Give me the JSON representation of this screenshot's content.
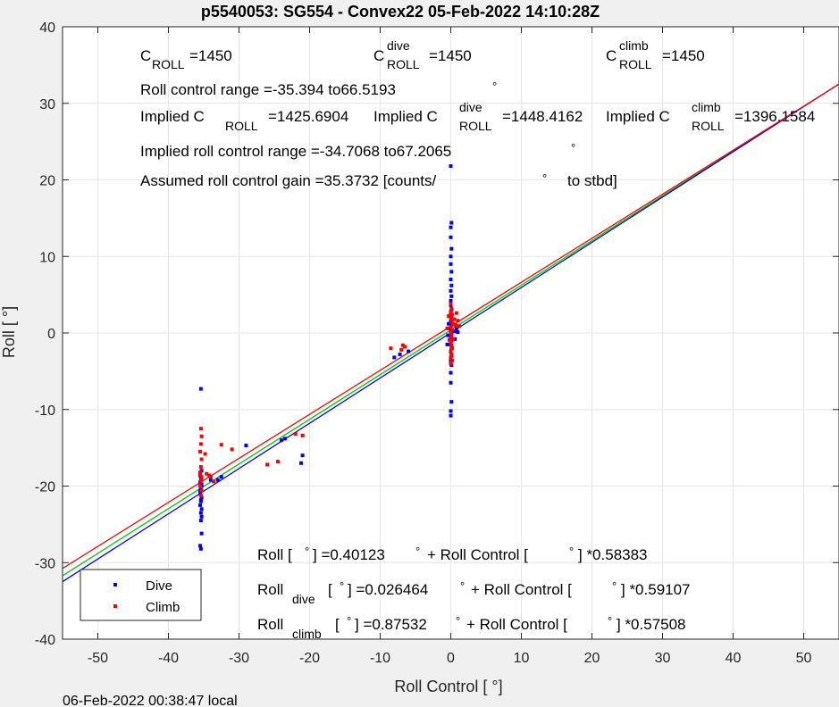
{
  "chart_data": {
    "type": "scatter",
    "title": "p5540053: SG554 - Convex22 05-Feb-2022 14:10:28Z",
    "xlabel": "Roll Control [   °]",
    "ylabel": "Roll [   °]",
    "xlim": [
      -55,
      55
    ],
    "ylim": [
      -40,
      40
    ],
    "xticks": [
      -50,
      -40,
      -30,
      -20,
      -10,
      0,
      10,
      20,
      30,
      40,
      50
    ],
    "yticks": [
      -40,
      -30,
      -20,
      -10,
      0,
      10,
      20,
      30,
      40
    ],
    "grid": true,
    "footer": "06-Feb-2022 00:38:47 local",
    "legend": {
      "position": "bottom-left",
      "entries": [
        {
          "label": "Dive",
          "color": "#0000ff"
        },
        {
          "label": "Climb",
          "color": "#ff0000"
        }
      ]
    },
    "fit_lines": [
      {
        "name": "all",
        "color": "#00cc00",
        "intercept": 0.40123,
        "slope": 0.58383
      },
      {
        "name": "dive",
        "color": "#0000ff",
        "intercept": 0.026464,
        "slope": 0.59107
      },
      {
        "name": "climb",
        "color": "#ff0000",
        "intercept": 0.87532,
        "slope": 0.57508
      }
    ],
    "series": [
      {
        "name": "Dive",
        "color": "#0000ff",
        "points": [
          [
            -35.4,
            -7.3
          ],
          [
            -35.3,
            -18.0
          ],
          [
            -35.4,
            -19.0
          ],
          [
            -35.5,
            -19.5
          ],
          [
            -35.3,
            -20.0
          ],
          [
            -35.4,
            -20.5
          ],
          [
            -35.5,
            -21.0
          ],
          [
            -35.3,
            -21.5
          ],
          [
            -35.4,
            -22.0
          ],
          [
            -35.5,
            -22.5
          ],
          [
            -35.3,
            -23.0
          ],
          [
            -35.4,
            -23.5
          ],
          [
            -35.3,
            -24.0
          ],
          [
            -35.4,
            -24.5
          ],
          [
            -35.3,
            -26.2
          ],
          [
            -35.5,
            -27.8
          ],
          [
            -35.4,
            -28.2
          ],
          [
            -35.5,
            -18.6
          ],
          [
            -35.3,
            -19.8
          ],
          [
            -35.4,
            -21.8
          ],
          [
            -35.5,
            -20.6
          ],
          [
            -34.0,
            -19.2
          ],
          [
            -33.0,
            -19.2
          ],
          [
            -32.5,
            -18.8
          ],
          [
            -29.0,
            -14.7
          ],
          [
            -24.0,
            -14.0
          ],
          [
            -23.5,
            -13.8
          ],
          [
            -21.0,
            -16.0
          ],
          [
            -21.2,
            -17.0
          ],
          [
            -8.0,
            -3.2
          ],
          [
            -7.2,
            -2.8
          ],
          [
            -6.0,
            -2.4
          ],
          [
            0.0,
            21.8
          ],
          [
            0.1,
            14.4
          ],
          [
            0.0,
            13.8
          ],
          [
            0.0,
            12.5
          ],
          [
            0.1,
            11.0
          ],
          [
            0.0,
            10.0
          ],
          [
            0.0,
            9.0
          ],
          [
            0.1,
            8.0
          ],
          [
            0.0,
            7.0
          ],
          [
            0.1,
            6.2
          ],
          [
            0.0,
            5.5
          ],
          [
            0.1,
            4.8
          ],
          [
            0.0,
            4.2
          ],
          [
            0.0,
            3.6
          ],
          [
            0.1,
            3.0
          ],
          [
            0.0,
            2.5
          ],
          [
            0.1,
            2.0
          ],
          [
            0.0,
            1.5
          ],
          [
            0.1,
            1.0
          ],
          [
            0.0,
            0.5
          ],
          [
            0.1,
            0.0
          ],
          [
            0.0,
            -0.5
          ],
          [
            0.1,
            -1.0
          ],
          [
            0.0,
            -1.5
          ],
          [
            0.1,
            -2.0
          ],
          [
            0.0,
            -2.5
          ],
          [
            0.1,
            -3.0
          ],
          [
            0.0,
            -3.6
          ],
          [
            0.1,
            -4.2
          ],
          [
            0.0,
            -5.2
          ],
          [
            0.0,
            -6.5
          ],
          [
            0.1,
            -9.0
          ],
          [
            0.0,
            -10.2
          ],
          [
            0.0,
            -10.8
          ],
          [
            0.5,
            0.2
          ],
          [
            -0.4,
            -0.3
          ],
          [
            0.6,
            -0.8
          ],
          [
            -0.3,
            1.2
          ],
          [
            0.8,
            0.5
          ],
          [
            1.0,
            0.1
          ],
          [
            -0.5,
            -1.5
          ]
        ]
      },
      {
        "name": "Climb",
        "color": "#ff0000",
        "points": [
          [
            -35.4,
            -12.5
          ],
          [
            -35.3,
            -13.5
          ],
          [
            -35.4,
            -14.5
          ],
          [
            -35.5,
            -15.5
          ],
          [
            -35.3,
            -16.5
          ],
          [
            -35.4,
            -17.5
          ],
          [
            -35.5,
            -18.2
          ],
          [
            -35.3,
            -18.8
          ],
          [
            -35.4,
            -19.4
          ],
          [
            -35.5,
            -20.0
          ],
          [
            -35.3,
            -20.6
          ],
          [
            -35.4,
            -21.2
          ],
          [
            -35.3,
            -19.0
          ],
          [
            -35.5,
            -18.5
          ],
          [
            -34.8,
            -15.8
          ],
          [
            -34.6,
            -18.4
          ],
          [
            -34.2,
            -18.6
          ],
          [
            -34.0,
            -18.8
          ],
          [
            -33.6,
            -19.4
          ],
          [
            -32.5,
            -14.6
          ],
          [
            -31.0,
            -15.2
          ],
          [
            -26.0,
            -17.2
          ],
          [
            -24.5,
            -16.8
          ],
          [
            -22.0,
            -13.2
          ],
          [
            -21.0,
            -13.4
          ],
          [
            -8.5,
            -2.0
          ],
          [
            -7.0,
            -2.2
          ],
          [
            -6.8,
            -1.6
          ],
          [
            -6.5,
            -1.8
          ],
          [
            0.0,
            3.8
          ],
          [
            0.1,
            3.2
          ],
          [
            0.0,
            2.8
          ],
          [
            0.2,
            2.4
          ],
          [
            0.0,
            2.0
          ],
          [
            0.1,
            1.6
          ],
          [
            0.3,
            1.2
          ],
          [
            0.0,
            0.8
          ],
          [
            0.2,
            0.4
          ],
          [
            0.0,
            0.0
          ],
          [
            0.1,
            -0.4
          ],
          [
            0.3,
            -0.8
          ],
          [
            0.0,
            -1.2
          ],
          [
            0.1,
            -1.6
          ],
          [
            0.2,
            -2.0
          ],
          [
            0.0,
            -2.4
          ],
          [
            0.1,
            -2.8
          ],
          [
            0.0,
            -3.2
          ],
          [
            0.2,
            -3.6
          ],
          [
            0.0,
            -4.0
          ],
          [
            0.5,
            1.8
          ],
          [
            0.7,
            1.0
          ],
          [
            1.0,
            1.6
          ],
          [
            -0.3,
            2.2
          ],
          [
            -0.5,
            0.6
          ],
          [
            0.8,
            2.6
          ],
          [
            1.2,
            0.9
          ],
          [
            -0.2,
            -0.9
          ]
        ]
      }
    ],
    "annotations": {
      "c_roll": {
        "base": "C",
        "sub": "ROLL",
        "value": "=1450"
      },
      "c_roll_dive": {
        "base": "C",
        "sup": "dive",
        "sub": "ROLL",
        "value": "=1450"
      },
      "c_roll_climb": {
        "base": "C",
        "sup": "climb",
        "sub": "ROLL",
        "value": "=1450"
      },
      "roll_control_range": "Roll control range =-35.394 to66.5193",
      "implied_all": {
        "prefix": "Implied C",
        "sub": "ROLL",
        "value": "=1425.6904"
      },
      "implied_dive": {
        "prefix": "Implied C",
        "sup": "dive",
        "sub": "ROLL",
        "value": "=1448.4162"
      },
      "implied_climb": {
        "prefix": "Implied C",
        "sup": "climb",
        "sub": "ROLL",
        "value": "=1396.1584"
      },
      "implied_range": "Implied roll control range =-34.7068 to67.2065",
      "gain": "Assumed roll control gain =35.3732 [counts/",
      "gain_suffix": "to stbd]",
      "degree": "°",
      "fit_all": {
        "a": "Roll [",
        "b": "] =0.40123",
        "c": "+ Roll Control [",
        "d": "] *0.58383"
      },
      "fit_dive": {
        "a": "Roll",
        "sub": "dive",
        "b": "[",
        "c": "] =0.026464",
        "d": "+ Roll Control [",
        "e": "] *0.59107"
      },
      "fit_climb": {
        "a": "Roll",
        "sub": "climb",
        "b": "[",
        "c": "] =0.87532",
        "d": "+ Roll Control [",
        "e": "] *0.57508"
      }
    }
  }
}
